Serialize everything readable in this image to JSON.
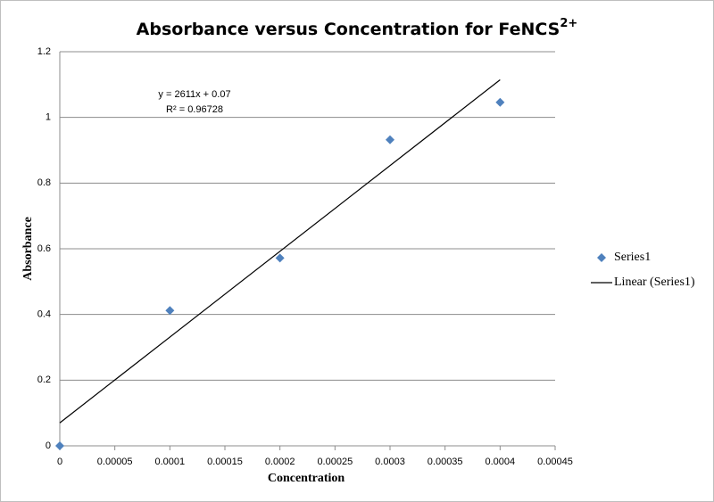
{
  "chart_data": {
    "type": "scatter",
    "title": "Absorbance versus Concentration for FeNCS",
    "title_superscript": "2+",
    "x_label": "Concentration",
    "y_label": "Absorbance",
    "xlim": [
      0,
      0.00045
    ],
    "xticks": [
      0,
      5e-05,
      0.0001,
      0.00015,
      0.0002,
      0.00025,
      0.0003,
      0.00035,
      0.0004,
      0.00045
    ],
    "ylim": [
      0,
      1.2
    ],
    "yticks": [
      0,
      0.2,
      0.4,
      0.6,
      0.8,
      1,
      1.2
    ],
    "grid": true,
    "legend": "right",
    "series": [
      {
        "name": "Series1",
        "color": "#4f81bd",
        "x": [
          0,
          0.0001,
          0.0002,
          0.0003,
          0.0004
        ],
        "values": [
          0,
          0.412,
          0.572,
          0.932,
          1.046
        ]
      }
    ],
    "trendline": {
      "name": "Linear (Series1)",
      "color": "#000000",
      "slope": 2611,
      "intercept": 0.07,
      "equation": "y = 2611x + 0.07",
      "r_squared": "R² = 0.96728"
    }
  }
}
